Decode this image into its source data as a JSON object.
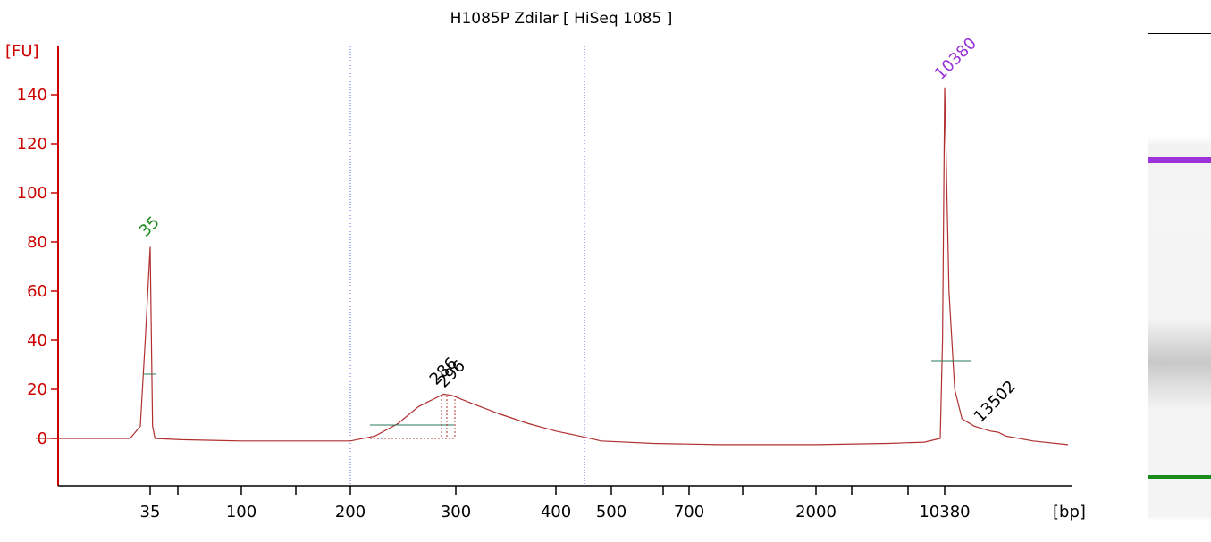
{
  "title": "H1085P Zdilar  [ HiSeq 1085 ]",
  "chart_data": {
    "type": "line",
    "title": "H1085P Zdilar  [ HiSeq 1085 ]",
    "xlabel": "[bp]",
    "ylabel": "[FU]",
    "ylim": [
      -20,
      155
    ],
    "y_ticks": [
      0,
      20,
      40,
      60,
      80,
      100,
      120,
      140
    ],
    "x_tick_labels": [
      "35",
      "100",
      "200",
      "300",
      "400",
      "500",
      "700",
      "2000",
      "10380"
    ],
    "x_scale": "non-linear (gel ladder)",
    "grid": false,
    "colors": {
      "axis": "#cc0000",
      "trace": "#b03030",
      "lower_marker": "#1a8a1a",
      "upper_marker": "#9a33d9",
      "peak_label": "#000000"
    },
    "series": [
      {
        "points_bp_fu": [
          [
            25,
            0
          ],
          [
            33,
            0
          ],
          [
            34,
            5
          ],
          [
            34.5,
            40
          ],
          [
            35,
            78
          ],
          [
            35.5,
            40
          ],
          [
            36,
            5
          ],
          [
            37,
            0
          ],
          [
            50,
            -0.5
          ],
          [
            100,
            -1
          ],
          [
            150,
            -1
          ],
          [
            200,
            -1
          ],
          [
            220,
            1
          ],
          [
            240,
            6
          ],
          [
            260,
            13
          ],
          [
            286,
            18
          ],
          [
            296,
            17.5
          ],
          [
            310,
            15
          ],
          [
            340,
            10
          ],
          [
            370,
            6
          ],
          [
            400,
            3
          ],
          [
            440,
            1
          ],
          [
            480,
            -1
          ],
          [
            600,
            -2
          ],
          [
            900,
            -2.5
          ],
          [
            2000,
            -2.5
          ],
          [
            5000,
            -2
          ],
          [
            8000,
            -1.5
          ],
          [
            9800,
            0
          ],
          [
            10100,
            40
          ],
          [
            10380,
            143
          ],
          [
            10600,
            60
          ],
          [
            10900,
            20
          ],
          [
            11300,
            8
          ],
          [
            12000,
            5
          ],
          [
            13000,
            3
          ],
          [
            13502,
            2.5
          ],
          [
            14000,
            1
          ],
          [
            16000,
            -1
          ],
          [
            19000,
            -2.5
          ]
        ]
      }
    ],
    "peaks": [
      {
        "label": "35",
        "bp": 35,
        "fu": 78
      },
      {
        "label": "286",
        "bp": 286,
        "fu": 18
      },
      {
        "label": "296",
        "bp": 296,
        "fu": 17.5
      },
      {
        "label": "10380",
        "bp": 10380,
        "fu": 143
      },
      {
        "label": "13502",
        "bp": 13502,
        "fu": 2.5
      }
    ],
    "region_markers_bp": [
      200,
      470
    ],
    "gel_bands": [
      {
        "name": "upper-marker",
        "color": "#9a33d9"
      },
      {
        "name": "smear",
        "color": "#c8c8c8"
      },
      {
        "name": "lower-marker",
        "color": "#1a8a1a"
      }
    ]
  }
}
